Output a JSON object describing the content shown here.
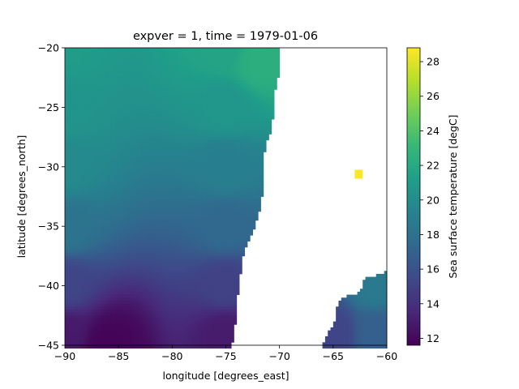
{
  "chart_data": {
    "type": "heatmap",
    "title": "expver = 1, time = 1979-01-06",
    "xlabel": "longitude [degrees_east]",
    "ylabel": "latitude [degrees_north]",
    "colorbar_label": "Sea surface temperature [degC]",
    "xlim": [
      -90,
      -60
    ],
    "ylim": [
      -45,
      -20
    ],
    "clim": [
      11.6,
      28.8
    ],
    "colormap": "viridis",
    "colormap_stops": [
      "#440154",
      "#482878",
      "#3e4989",
      "#31688e",
      "#26828e",
      "#1f9e89",
      "#35b779",
      "#6ece58",
      "#b5de2b",
      "#fde725"
    ],
    "x_ticks": [
      -90,
      -85,
      -80,
      -75,
      -70,
      -65,
      -60
    ],
    "x_tick_labels": [
      "−90",
      "−85",
      "−80",
      "−75",
      "−70",
      "−65",
      "−60"
    ],
    "y_ticks": [
      -20,
      -25,
      -30,
      -35,
      -40,
      -45
    ],
    "y_tick_labels": [
      "−20",
      "−25",
      "−30",
      "−35",
      "−40",
      "−45"
    ],
    "colorbar_ticks": [
      12,
      14,
      16,
      18,
      20,
      22,
      24,
      26,
      28
    ],
    "colorbar_tick_labels": [
      "12",
      "14",
      "16",
      "18",
      "20",
      "22",
      "24",
      "26",
      "28"
    ],
    "grid_resolution_deg": 0.25,
    "west_coast_lon_by_lat": [
      [
        -20,
        -70.0
      ],
      [
        -22,
        -70.0
      ],
      [
        -23,
        -70.2
      ],
      [
        -24,
        -70.5
      ],
      [
        -25,
        -70.5
      ],
      [
        -26,
        -70.6
      ],
      [
        -27,
        -70.8
      ],
      [
        -28,
        -71.2
      ],
      [
        -29,
        -71.4
      ],
      [
        -30,
        -71.6
      ],
      [
        -31,
        -71.6
      ],
      [
        -32,
        -71.5
      ],
      [
        -33,
        -71.7
      ],
      [
        -34,
        -71.9
      ],
      [
        -35,
        -72.3
      ],
      [
        -36,
        -72.7
      ],
      [
        -37,
        -73.2
      ],
      [
        -38,
        -73.5
      ],
      [
        -39,
        -73.6
      ],
      [
        -40,
        -73.8
      ],
      [
        -41,
        -73.9
      ],
      [
        -42,
        -74.0
      ],
      [
        -43,
        -74.1
      ],
      [
        -44,
        -74.2
      ],
      [
        -45,
        -74.4
      ]
    ],
    "east_coast_lon_by_lat": [
      [
        -38.8,
        -60.0
      ],
      [
        -39.5,
        -62.3
      ],
      [
        -40.5,
        -62.4
      ],
      [
        -41.0,
        -64.2
      ],
      [
        -42.0,
        -64.8
      ],
      [
        -43.0,
        -64.8
      ],
      [
        -44.0,
        -65.5
      ],
      [
        -45.0,
        -66.0
      ]
    ],
    "sst_samples": [
      {
        "lon": -90,
        "lat": -20,
        "value": 21.0
      },
      {
        "lon": -75,
        "lat": -20,
        "value": 21.6
      },
      {
        "lon": -72,
        "lat": -21,
        "value": 22.4
      },
      {
        "lon": -90,
        "lat": -25,
        "value": 20.5
      },
      {
        "lon": -75,
        "lat": -25,
        "value": 20.6
      },
      {
        "lon": -90,
        "lat": -30,
        "value": 19.8
      },
      {
        "lon": -75,
        "lat": -30,
        "value": 19.0
      },
      {
        "lon": -90,
        "lat": -35,
        "value": 18.2
      },
      {
        "lon": -75,
        "lat": -35,
        "value": 17.4
      },
      {
        "lon": -90,
        "lat": -40,
        "value": 15.2
      },
      {
        "lon": -75,
        "lat": -40,
        "value": 15.0
      },
      {
        "lon": -90,
        "lat": -44,
        "value": 12.8
      },
      {
        "lon": -86,
        "lat": -45,
        "value": 11.8
      },
      {
        "lon": -75,
        "lat": -44,
        "value": 12.9
      },
      {
        "lon": -61,
        "lat": -40,
        "value": 18.6
      },
      {
        "lon": -61,
        "lat": -44,
        "value": 16.8
      },
      {
        "lon": -65,
        "lat": -44,
        "value": 15.2
      }
    ],
    "hotspot": {
      "lon": [
        -63.0,
        -62.25
      ],
      "lat": [
        -31.0,
        -30.25
      ],
      "value": 28.8
    }
  }
}
